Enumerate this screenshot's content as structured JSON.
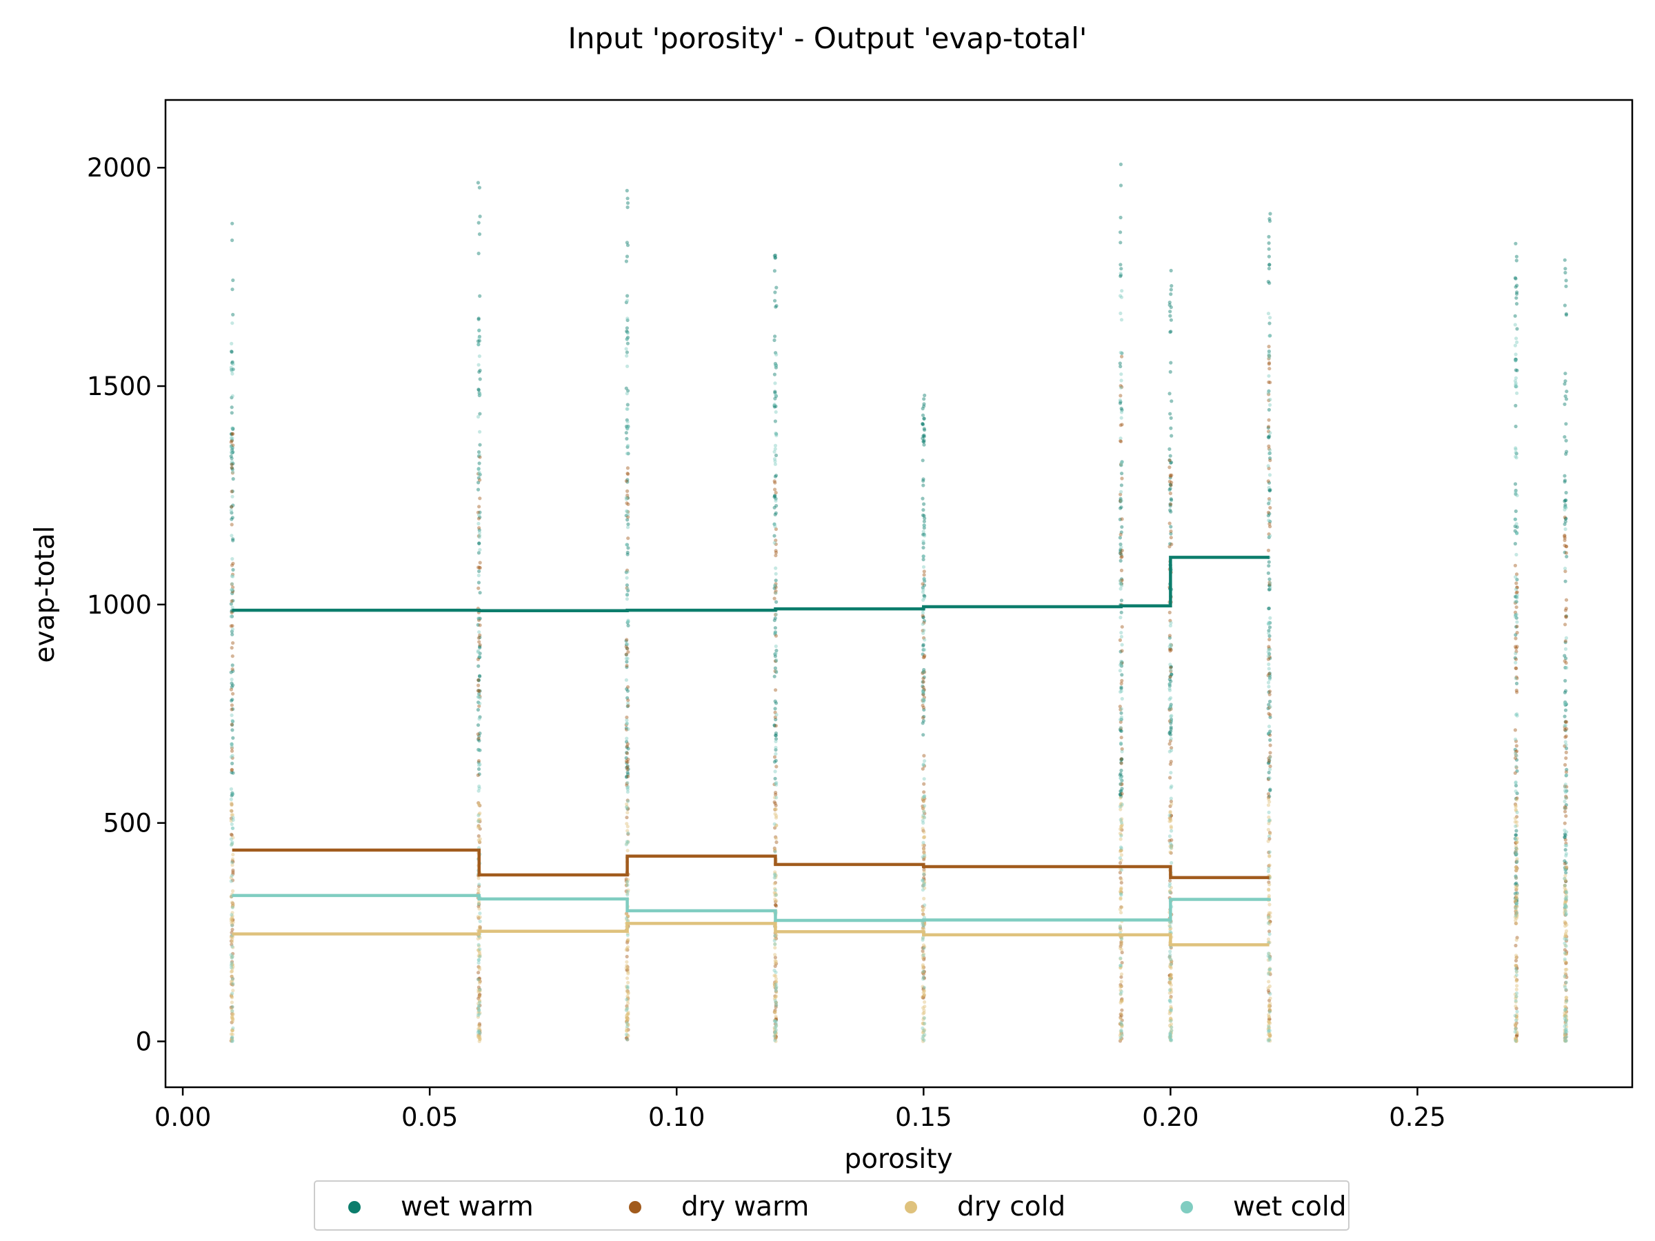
{
  "chart_data": {
    "type": "scatter",
    "title": "Input 'porosity' - Output 'evap-total'",
    "xlabel": "porosity",
    "ylabel": "evap-total",
    "xlim": [
      -0.0035,
      0.2935
    ],
    "ylim": [
      -105,
      2155
    ],
    "xticks": [
      0.0,
      0.05,
      0.1,
      0.15,
      0.2,
      0.25
    ],
    "xtick_labels": [
      "0.00",
      "0.05",
      "0.10",
      "0.15",
      "0.20",
      "0.25"
    ],
    "yticks": [
      0,
      500,
      1000,
      1500,
      2000
    ],
    "ytick_labels": [
      "0",
      "500",
      "1000",
      "1500",
      "2000"
    ],
    "legend_position": "bottom-center",
    "scatter_x": [
      0.01,
      0.06,
      0.09,
      0.12,
      0.15,
      0.19,
      0.2,
      0.22,
      0.27,
      0.28
    ],
    "scatter_ranges": [
      {
        "name": "wet warm",
        "ranges": [
          [
            560,
            1880
          ],
          [
            600,
            2010
          ],
          [
            600,
            1960
          ],
          [
            600,
            1860
          ],
          [
            700,
            1490
          ],
          [
            560,
            2050
          ],
          [
            700,
            1770
          ],
          [
            560,
            1950
          ],
          [
            300,
            1900
          ],
          [
            300,
            1790
          ]
        ]
      },
      {
        "name": "dry warm",
        "ranges": [
          [
            0,
            1400
          ],
          [
            0,
            1400
          ],
          [
            0,
            1350
          ],
          [
            0,
            1300
          ],
          [
            100,
            1100
          ],
          [
            0,
            1600
          ],
          [
            100,
            1350
          ],
          [
            0,
            1600
          ],
          [
            0,
            1100
          ],
          [
            0,
            1200
          ]
        ]
      },
      {
        "name": "dry cold",
        "ranges": [
          [
            0,
            560
          ],
          [
            0,
            560
          ],
          [
            0,
            560
          ],
          [
            0,
            560
          ],
          [
            0,
            560
          ],
          [
            0,
            560
          ],
          [
            0,
            560
          ],
          [
            0,
            560
          ],
          [
            0,
            560
          ],
          [
            0,
            400
          ]
        ]
      },
      {
        "name": "wet cold",
        "ranges": [
          [
            0,
            1650
          ],
          [
            0,
            1700
          ],
          [
            0,
            1700
          ],
          [
            0,
            1650
          ],
          [
            0,
            1200
          ],
          [
            0,
            1800
          ],
          [
            0,
            1100
          ],
          [
            0,
            1700
          ],
          [
            0,
            1650
          ],
          [
            0,
            1250
          ]
        ]
      }
    ],
    "step_x": [
      0.01,
      0.06,
      0.09,
      0.12,
      0.15,
      0.19,
      0.2,
      0.22
    ],
    "series": [
      {
        "name": "wet warm",
        "color": "#0c7d6c",
        "values": [
          987,
          986,
          987,
          990,
          995,
          997,
          1108,
          1108
        ]
      },
      {
        "name": "dry warm",
        "color": "#a15b1d",
        "values": [
          438,
          381,
          424,
          405,
          400,
          400,
          375,
          375
        ]
      },
      {
        "name": "dry cold",
        "color": "#dfc27d",
        "values": [
          246,
          252,
          270,
          251,
          244,
          244,
          221,
          221
        ]
      },
      {
        "name": "wet cold",
        "color": "#80cdc1",
        "values": [
          334,
          326,
          299,
          277,
          278,
          278,
          325,
          328
        ]
      }
    ]
  }
}
